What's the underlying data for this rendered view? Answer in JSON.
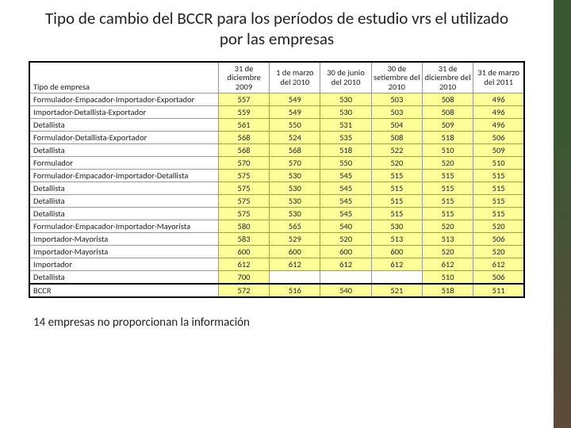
{
  "title": "Tipo de cambio del BCCR para los períodos de estudio vrs el utilizado por las empresas",
  "footnote": "14 empresas no proporcionan la información",
  "table": {
    "header_first": "Tipo de empresa",
    "columns": [
      "31 de diciembre 2009",
      "1 de marzo del 2010",
      "30 de junio del 2010",
      "30 de setiembre del 2010",
      "31 de diciembre del 2010",
      "31 de marzo del 2011"
    ],
    "rows": [
      {
        "label": "Formulador-Empacador-Importador-Exportador",
        "vals": [
          "557",
          "549",
          "530",
          "503",
          "508",
          "496"
        ]
      },
      {
        "label": "Importador-Detallista-Exportador",
        "vals": [
          "559",
          "549",
          "530",
          "503",
          "508",
          "496"
        ]
      },
      {
        "label": "Detallista",
        "vals": [
          "561",
          "550",
          "531",
          "504",
          "509",
          "496"
        ]
      },
      {
        "label": "Formulador-Detallista-Exportador",
        "vals": [
          "568",
          "524",
          "535",
          "508",
          "518",
          "506"
        ]
      },
      {
        "label": "Detallista",
        "vals": [
          "568",
          "568",
          "518",
          "522",
          "510",
          "509"
        ]
      },
      {
        "label": "Formulador",
        "vals": [
          "570",
          "570",
          "550",
          "520",
          "520",
          "510"
        ]
      },
      {
        "label": "Formulador-Empacador-Importador-Detallista",
        "vals": [
          "575",
          "530",
          "545",
          "515",
          "515",
          "515"
        ]
      },
      {
        "label": "Detallista",
        "vals": [
          "575",
          "530",
          "545",
          "515",
          "515",
          "515"
        ]
      },
      {
        "label": "Detallista",
        "vals": [
          "575",
          "530",
          "545",
          "515",
          "515",
          "515"
        ]
      },
      {
        "label": "Detallista",
        "vals": [
          "575",
          "530",
          "545",
          "515",
          "515",
          "515"
        ]
      },
      {
        "label": "Formulador-Empacador-Importador-Mayorista",
        "vals": [
          "580",
          "565",
          "540",
          "530",
          "520",
          "520"
        ]
      },
      {
        "label": "Importador-Mayorista",
        "vals": [
          "583",
          "529",
          "520",
          "513",
          "513",
          "506"
        ]
      },
      {
        "label": "Importador-Mayorista",
        "vals": [
          "600",
          "600",
          "600",
          "600",
          "520",
          "520"
        ]
      },
      {
        "label": "Importador",
        "vals": [
          "612",
          "612",
          "612",
          "612",
          "612",
          "612"
        ]
      },
      {
        "label": "Detallista",
        "vals": [
          "700",
          "",
          "",
          "",
          "510",
          "506"
        ]
      },
      {
        "label": "BCCR",
        "vals": [
          "572",
          "516",
          "540",
          "521",
          "518",
          "511"
        ],
        "total": true
      }
    ],
    "colors": {
      "highlight_bg": "#ffff99",
      "border": "#999999",
      "outer_border": "#000000"
    }
  }
}
